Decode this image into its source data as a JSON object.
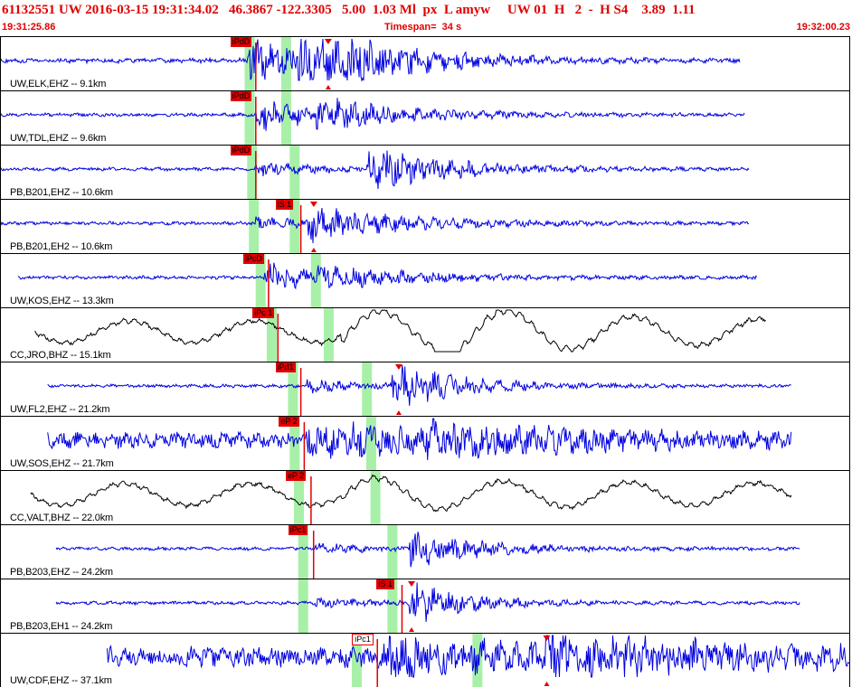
{
  "header": {
    "event_line": "61132551 UW 2016-03-15 19:31:34.02   46.3867 -122.3305   5.00  1.03 Ml  px  L amyw     UW 01  H   2  -  H S4    3.89  1.11",
    "start_time": "19:31:25.86",
    "timespan": "Timespan=  34 s",
    "end_time": "19:32:00.23"
  },
  "colors": {
    "blue_trace": "#0000e0",
    "black_trace": "#000000",
    "pick_red": "#e00000",
    "window_green": "#a8f0a8"
  },
  "tracks": [
    {
      "label": "UW,ELK,EHZ -- 9.1km",
      "color": "blue",
      "noise_amp": 2,
      "events": [
        [
          0.29,
          20,
          2.0
        ],
        [
          0.35,
          18,
          3.0
        ],
        [
          0.4,
          10,
          3.2
        ]
      ],
      "start": 0.0,
      "end": 0.87,
      "picks": [
        {
          "text": "iPdD",
          "pos": 0.27
        }
      ],
      "smark": 0.385,
      "windows": [
        0.292,
        0.335
      ]
    },
    {
      "label": "UW,TDL,EHZ -- 9.6km",
      "color": "blue",
      "noise_amp": 1.5,
      "events": [
        [
          0.3,
          14,
          2.4
        ],
        [
          0.37,
          10,
          3.5
        ]
      ],
      "start": 0.0,
      "end": 0.875,
      "picks": [
        {
          "text": "iPdD",
          "pos": 0.27
        }
      ],
      "smark": null,
      "windows": [
        0.292,
        0.335
      ]
    },
    {
      "label": "PB,B201,EHZ -- 10.6km",
      "color": "blue",
      "noise_amp": 1.5,
      "events": [
        [
          0.3,
          6,
          2.2
        ],
        [
          0.43,
          18,
          3.0
        ]
      ],
      "start": 0.0,
      "end": 0.88,
      "picks": [
        {
          "text": "iPdD",
          "pos": 0.27
        }
      ],
      "smark": null,
      "windows": [
        0.295,
        0.345
      ]
    },
    {
      "label": "PB,B201,EH2 -- 10.6km",
      "color": "blue",
      "noise_amp": 1.5,
      "events": [
        [
          0.3,
          5,
          2.0
        ],
        [
          0.36,
          14,
          3.4
        ]
      ],
      "start": 0.0,
      "end": 0.88,
      "picks": [
        {
          "text": "iS 1",
          "pos": 0.323
        }
      ],
      "smark": 0.368,
      "windows": [
        0.297,
        0.345
      ]
    },
    {
      "label": "UW,KOS,EHZ -- 13.3km",
      "color": "blue",
      "noise_amp": 1.5,
      "events": [
        [
          0.31,
          14,
          2.0
        ],
        [
          0.37,
          7,
          4.0
        ]
      ],
      "start": 0.02,
      "end": 0.89,
      "picks": [
        {
          "text": "iPcD",
          "pos": 0.285
        }
      ],
      "smark": null,
      "windows": [
        0.305,
        0.37
      ]
    },
    {
      "label": "CC,JRO,BHZ -- 15.1km",
      "color": "black",
      "noise_amp": 12,
      "events": [
        [
          0.4,
          14,
          5.0
        ],
        [
          0.51,
          12,
          5.0
        ]
      ],
      "start": 0.04,
      "end": 0.9,
      "picks": [
        {
          "text": "iPc 1",
          "pos": 0.296
        }
      ],
      "smark": null,
      "windows": [
        0.318,
        0.385
      ]
    },
    {
      "label": "UW,FL2,EHZ -- 21.2km",
      "color": "blue",
      "noise_amp": 1.5,
      "events": [
        [
          0.36,
          5,
          2.0
        ],
        [
          0.46,
          18,
          2.5
        ]
      ],
      "start": 0.055,
      "end": 0.93,
      "picks": [
        {
          "text": "iPd1",
          "pos": 0.323
        }
      ],
      "smark": 0.468,
      "windows": [
        0.343,
        0.43
      ]
    },
    {
      "label": "UW,SOS,EHZ -- 21.7km",
      "color": "blue",
      "noise_amp": 7,
      "events": [
        [
          0.36,
          12,
          5.0
        ],
        [
          0.5,
          10,
          4.0
        ]
      ],
      "start": 0.055,
      "end": 0.93,
      "picks": [
        {
          "text": "eP 2",
          "pos": 0.327
        }
      ],
      "smark": null,
      "windows": [
        0.345,
        0.435
      ]
    },
    {
      "label": "CC,VALT,BHZ -- 22.0km",
      "color": "black",
      "noise_amp": 12,
      "events": [
        [
          0.4,
          8,
          5.0
        ]
      ],
      "start": 0.035,
      "end": 0.93,
      "picks": [
        {
          "text": "eP 2",
          "pos": 0.335
        }
      ],
      "smark": null,
      "windows": [
        0.35,
        0.44
      ]
    },
    {
      "label": "PB,B203,EHZ -- 24.2km",
      "color": "blue",
      "noise_amp": 1.5,
      "events": [
        [
          0.37,
          4,
          2.0
        ],
        [
          0.48,
          16,
          2.5
        ]
      ],
      "start": 0.065,
      "end": 0.94,
      "picks": [
        {
          "text": "iPc1",
          "pos": 0.338
        }
      ],
      "smark": null,
      "windows": [
        0.355,
        0.46
      ]
    },
    {
      "label": "PB,B203,EH1 -- 24.2km",
      "color": "blue",
      "noise_amp": 1.5,
      "events": [
        [
          0.37,
          4,
          2.0
        ],
        [
          0.48,
          18,
          2.0
        ]
      ],
      "start": 0.065,
      "end": 0.94,
      "picks": [
        {
          "text": "iS 1",
          "pos": 0.442
        }
      ],
      "smark": 0.483,
      "windows": [
        0.355,
        0.46
      ]
    },
    {
      "label": "UW,CDF,EHZ -- 37.1km",
      "color": "blue",
      "noise_amp": 9,
      "events": [
        [
          0.45,
          14,
          5.0
        ],
        [
          0.64,
          14,
          5.0
        ]
      ],
      "start": 0.125,
      "end": 1.0,
      "picks": [
        {
          "text": "iPc1",
          "pos": 0.413,
          "light": true
        }
      ],
      "smark": 0.642,
      "windows": [
        0.418,
        0.56
      ]
    }
  ]
}
